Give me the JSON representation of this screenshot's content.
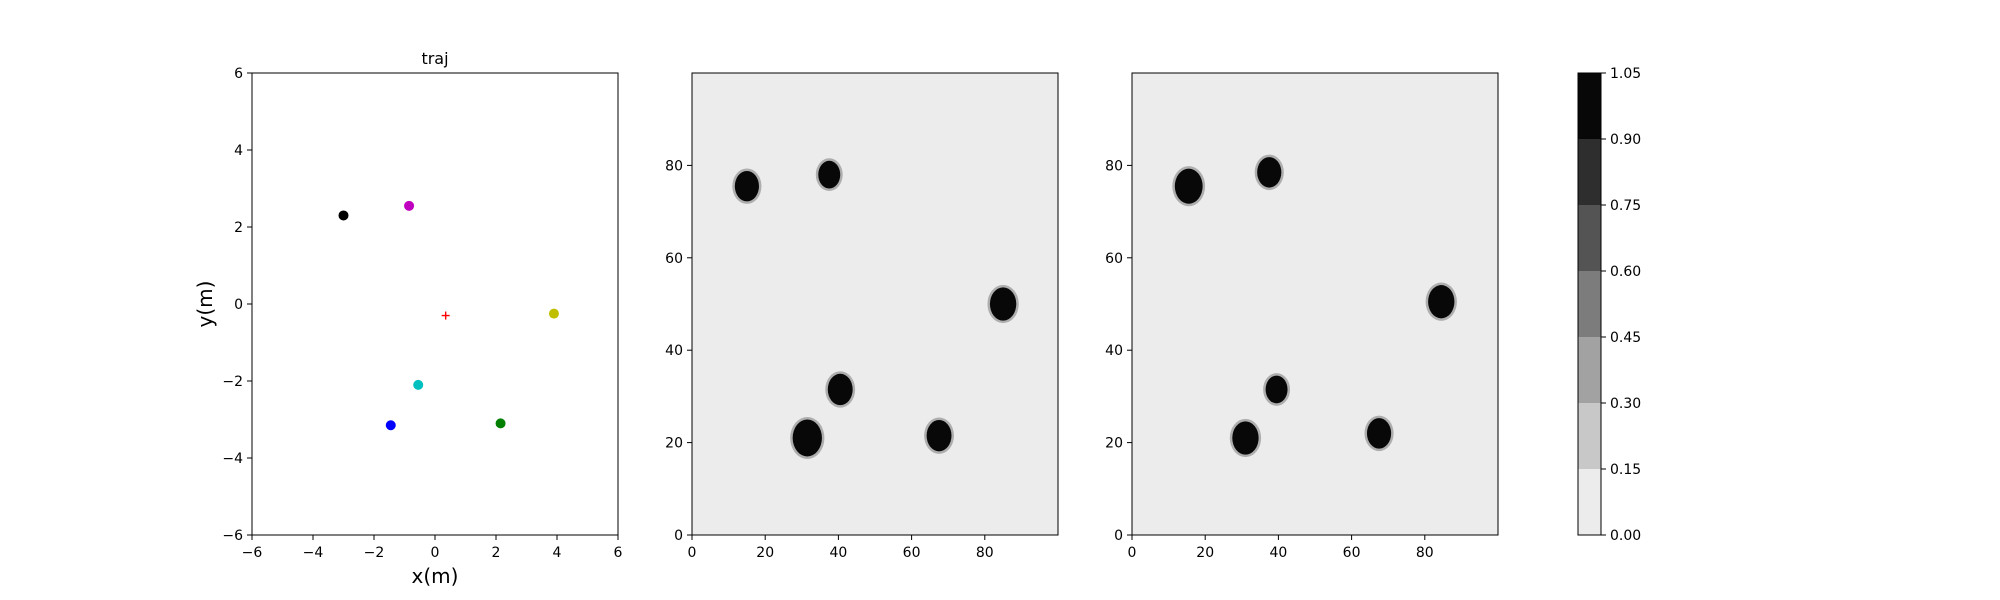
{
  "chart_data": [
    {
      "type": "scatter",
      "title": "traj",
      "xlabel": "x(m)",
      "ylabel": "y(m)",
      "xlim": [
        -6,
        6
      ],
      "ylim": [
        -6,
        6
      ],
      "xticks": [
        -6,
        -4,
        -2,
        0,
        2,
        4,
        6
      ],
      "yticks": [
        -6,
        -4,
        -2,
        0,
        2,
        4,
        6
      ],
      "xtick_labels": [
        "−6",
        "−4",
        "−2",
        "0",
        "2",
        "4",
        "6"
      ],
      "ytick_labels": [
        "−6",
        "−4",
        "−2",
        "0",
        "2",
        "4",
        "6"
      ],
      "grid": false,
      "points": [
        {
          "x": -3.0,
          "y": 2.3,
          "color": "#000000",
          "marker": "dot"
        },
        {
          "x": -0.85,
          "y": 2.55,
          "color": "#bf00bf",
          "marker": "dot"
        },
        {
          "x": 3.9,
          "y": -0.25,
          "color": "#bfbf00",
          "marker": "dot"
        },
        {
          "x": -0.55,
          "y": -2.1,
          "color": "#00bfbf",
          "marker": "dot"
        },
        {
          "x": -1.45,
          "y": -3.15,
          "color": "#0000ff",
          "marker": "dot"
        },
        {
          "x": 2.15,
          "y": -3.1,
          "color": "#008000",
          "marker": "dot"
        },
        {
          "x": 0.35,
          "y": -0.3,
          "color": "#ff0000",
          "marker": "plus"
        }
      ]
    },
    {
      "type": "heatmap",
      "title": "",
      "xlim": [
        0,
        100
      ],
      "ylim": [
        0,
        100
      ],
      "xticks": [
        0,
        20,
        40,
        60,
        80
      ],
      "yticks": [
        0,
        20,
        40,
        60,
        80
      ],
      "background_value": 0.05,
      "blobs": [
        {
          "x": 15,
          "y": 75.5,
          "r": 3.3,
          "value": 1.0
        },
        {
          "x": 37.5,
          "y": 78,
          "r": 3.0,
          "value": 1.0
        },
        {
          "x": 85,
          "y": 50,
          "r": 3.6,
          "value": 1.0
        },
        {
          "x": 40.5,
          "y": 31.5,
          "r": 3.4,
          "value": 1.0
        },
        {
          "x": 31.5,
          "y": 21,
          "r": 4.0,
          "value": 1.0
        },
        {
          "x": 67.5,
          "y": 21.5,
          "r": 3.4,
          "value": 1.0
        }
      ]
    },
    {
      "type": "heatmap",
      "title": "",
      "xlim": [
        0,
        100
      ],
      "ylim": [
        0,
        100
      ],
      "xticks": [
        0,
        20,
        40,
        60,
        80
      ],
      "yticks": [
        0,
        20,
        40,
        60,
        80
      ],
      "background_value": 0.05,
      "blobs": [
        {
          "x": 15.5,
          "y": 75.5,
          "r": 3.8,
          "value": 1.0
        },
        {
          "x": 37.5,
          "y": 78.5,
          "r": 3.3,
          "value": 1.0
        },
        {
          "x": 84.5,
          "y": 50.5,
          "r": 3.6,
          "value": 1.0
        },
        {
          "x": 39.5,
          "y": 31.5,
          "r": 3.0,
          "value": 1.0
        },
        {
          "x": 31,
          "y": 21,
          "r": 3.6,
          "value": 1.0
        },
        {
          "x": 67.5,
          "y": 22,
          "r": 3.3,
          "value": 1.0
        }
      ]
    },
    {
      "type": "colorbar",
      "range": [
        0.0,
        1.05
      ],
      "levels": [
        0.0,
        0.15,
        0.3,
        0.45,
        0.6,
        0.75,
        0.9,
        1.05
      ],
      "tick_labels": [
        "0.00",
        "0.15",
        "0.30",
        "0.45",
        "0.60",
        "0.75",
        "0.90",
        "1.05"
      ],
      "colors": [
        "#ececec",
        "#c8c8c8",
        "#a2a2a2",
        "#7c7c7c",
        "#545454",
        "#2e2e2e",
        "#080808"
      ]
    }
  ]
}
